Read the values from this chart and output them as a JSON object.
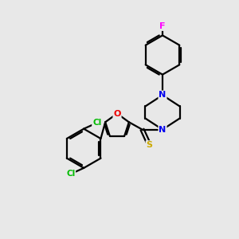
{
  "background_color": "#e8e8e8",
  "bond_color": "#000000",
  "atom_colors": {
    "F": "#ff00ff",
    "Cl": "#00bb00",
    "N": "#0000ee",
    "O": "#ee0000",
    "S": "#ccaa00",
    "C": "#000000"
  },
  "bond_width": 1.6,
  "figsize": [
    3.0,
    3.0
  ],
  "dpi": 100
}
